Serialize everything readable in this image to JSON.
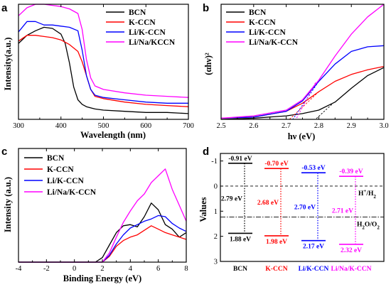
{
  "chart_data": [
    {
      "panel": "a",
      "type": "line",
      "xlabel": "Wavelength (nm)",
      "ylabel": "Intensity(a.u.)",
      "xlim": [
        300,
        700
      ],
      "ylim": [
        0,
        1
      ],
      "xticks": [
        "300",
        "400",
        "500",
        "600",
        "700"
      ],
      "legend_position": "top-right",
      "series": [
        {
          "name": "BCN",
          "color": "#000000",
          "x": [
            300,
            320,
            340,
            360,
            380,
            400,
            410,
            420,
            430,
            440,
            450,
            460,
            480,
            500,
            550,
            600,
            650,
            700
          ],
          "y": [
            0.66,
            0.73,
            0.77,
            0.8,
            0.79,
            0.74,
            0.66,
            0.49,
            0.28,
            0.17,
            0.13,
            0.11,
            0.09,
            0.08,
            0.07,
            0.06,
            0.06,
            0.05
          ]
        },
        {
          "name": "K-CCN",
          "color": "#ff0000",
          "x": [
            300,
            320,
            340,
            360,
            380,
            400,
            420,
            440,
            450,
            460,
            470,
            480,
            500,
            550,
            600,
            650,
            700
          ],
          "y": [
            0.68,
            0.73,
            0.73,
            0.72,
            0.71,
            0.69,
            0.65,
            0.59,
            0.5,
            0.38,
            0.26,
            0.2,
            0.18,
            0.15,
            0.13,
            0.12,
            0.11
          ]
        },
        {
          "name": "Li/K-CCN",
          "color": "#0000ff",
          "x": [
            300,
            320,
            340,
            360,
            380,
            400,
            420,
            440,
            450,
            460,
            470,
            480,
            500,
            550,
            600,
            650,
            700
          ],
          "y": [
            0.76,
            0.85,
            0.85,
            0.82,
            0.82,
            0.81,
            0.8,
            0.77,
            0.6,
            0.38,
            0.26,
            0.21,
            0.19,
            0.17,
            0.15,
            0.14,
            0.14
          ]
        },
        {
          "name": "Li/Na/KCCN",
          "color": "#ff00ff",
          "x": [
            300,
            320,
            340,
            360,
            380,
            400,
            420,
            440,
            450,
            460,
            470,
            480,
            500,
            550,
            600,
            650,
            700
          ],
          "y": [
            0.9,
            0.97,
            1.0,
            1.0,
            0.99,
            0.98,
            0.96,
            0.92,
            0.78,
            0.52,
            0.36,
            0.29,
            0.26,
            0.23,
            0.21,
            0.2,
            0.19
          ]
        }
      ]
    },
    {
      "panel": "b",
      "type": "line",
      "xlabel": "hν (eV)",
      "ylabel": "(αhν)²",
      "xlim": [
        2.5,
        3.0
      ],
      "ylim": [
        0,
        1
      ],
      "xticks": [
        "2.5",
        "2.6",
        "2.7",
        "2.8",
        "2.9",
        "3.0"
      ],
      "legend_position": "top-left",
      "band_gap_intercepts_eV": [
        2.71,
        2.72,
        2.73,
        2.79
      ],
      "series": [
        {
          "name": "BCN",
          "color": "#000000",
          "x": [
            2.5,
            2.6,
            2.7,
            2.75,
            2.8,
            2.85,
            2.9,
            2.95,
            3.0
          ],
          "y": [
            0.0,
            0.01,
            0.03,
            0.05,
            0.08,
            0.15,
            0.27,
            0.38,
            0.45
          ]
        },
        {
          "name": "K-CCN",
          "color": "#ff0000",
          "x": [
            2.5,
            2.6,
            2.7,
            2.75,
            2.8,
            2.85,
            2.9,
            2.95,
            3.0
          ],
          "y": [
            0.01,
            0.02,
            0.07,
            0.14,
            0.24,
            0.33,
            0.39,
            0.43,
            0.46
          ]
        },
        {
          "name": "Li/K-CCN",
          "color": "#0000ff",
          "x": [
            2.5,
            2.6,
            2.7,
            2.75,
            2.8,
            2.85,
            2.9,
            2.95,
            3.0
          ],
          "y": [
            0.01,
            0.02,
            0.07,
            0.16,
            0.33,
            0.48,
            0.59,
            0.63,
            0.64
          ]
        },
        {
          "name": "Li/Na/K-CCN",
          "color": "#ff00ff",
          "x": [
            2.5,
            2.6,
            2.7,
            2.75,
            2.8,
            2.85,
            2.9,
            2.95,
            3.0
          ],
          "y": [
            0.01,
            0.03,
            0.08,
            0.17,
            0.34,
            0.55,
            0.74,
            0.89,
            1.0
          ]
        }
      ]
    },
    {
      "panel": "c",
      "type": "line",
      "xlabel": "Binding Energy (eV)",
      "ylabel": "Intensity (a.u.)",
      "xlim": [
        -4,
        8
      ],
      "ylim": [
        0,
        1
      ],
      "xticks": [
        "-4",
        "-2",
        "0",
        "2",
        "4",
        "6",
        "8"
      ],
      "legend_position": "top-left",
      "series": [
        {
          "name": "BCN",
          "color": "#000000",
          "x": [
            -4,
            0,
            1,
            1.5,
            2.0,
            2.5,
            3.0,
            3.5,
            4.0,
            4.5,
            5.0,
            5.5,
            6.0,
            6.5,
            7.0,
            7.5,
            8.0
          ],
          "y": [
            0,
            0,
            0,
            0,
            0.04,
            0.15,
            0.26,
            0.32,
            0.33,
            0.31,
            0.4,
            0.52,
            0.46,
            0.33,
            0.29,
            0.22,
            0.26
          ]
        },
        {
          "name": "K-CCN",
          "color": "#ff0000",
          "x": [
            -4,
            0,
            1.5,
            2.0,
            2.5,
            3.0,
            3.5,
            4.0,
            4.5,
            5.0,
            5.5,
            6.0,
            6.5,
            7.0,
            7.5,
            8.0
          ],
          "y": [
            0,
            0,
            0,
            0,
            0.05,
            0.14,
            0.19,
            0.22,
            0.24,
            0.28,
            0.32,
            0.29,
            0.26,
            0.24,
            0.22,
            0.2
          ]
        },
        {
          "name": "Li/K-CCN",
          "color": "#0000ff",
          "x": [
            -4,
            0,
            1.5,
            2.0,
            2.5,
            3.0,
            3.5,
            4.0,
            4.5,
            5.0,
            5.5,
            6.0,
            6.5,
            7.0,
            7.5,
            8.0
          ],
          "y": [
            0,
            0,
            0,
            0,
            0.06,
            0.16,
            0.24,
            0.3,
            0.33,
            0.36,
            0.38,
            0.41,
            0.4,
            0.34,
            0.3,
            0.27
          ]
        },
        {
          "name": "Li/Na/K-CCN",
          "color": "#ff00ff",
          "x": [
            -4,
            0,
            1.5,
            2.0,
            2.5,
            3.0,
            3.5,
            4.0,
            4.5,
            5.0,
            5.5,
            6.0,
            6.5,
            7.0,
            7.5,
            8.0
          ],
          "y": [
            0,
            0,
            0,
            0,
            0.08,
            0.22,
            0.35,
            0.45,
            0.54,
            0.6,
            0.7,
            0.76,
            0.82,
            0.64,
            0.5,
            0.36
          ]
        }
      ]
    },
    {
      "panel": "d",
      "type": "bar",
      "ylabel": "Values",
      "ylim": [
        -1.3,
        3
      ],
      "yticks": [
        "-1",
        "0",
        "1",
        "2",
        "3"
      ],
      "reference_levels": [
        {
          "label_main": "H",
          "label_sup": "+",
          "label_rest": "/H",
          "label_sub": "2",
          "y": 0
        },
        {
          "label_main": "H",
          "label_sub": "2",
          "label_rest": "O/O",
          "label_sub2": "2",
          "y": 1.23
        }
      ],
      "categories": [
        "BCN",
        "K-CCN",
        "Li/K-CCN",
        "Li/Na/K-CCN"
      ],
      "colors": [
        "#000000",
        "#ff0000",
        "#0000ff",
        "#ff00ff"
      ],
      "cb_values": [
        -0.91,
        -0.7,
        -0.53,
        -0.39
      ],
      "vb_values": [
        1.88,
        1.98,
        2.17,
        2.32
      ],
      "band_gaps": [
        2.79,
        2.68,
        2.7,
        2.71
      ],
      "cb_labels": [
        "-0.91 eV",
        "-0.70 eV",
        "-0.53 eV",
        "-0.39 eV"
      ],
      "vb_labels": [
        "1.88 eV",
        "1.98 eV",
        "2.17 eV",
        "2.32 eV"
      ],
      "gap_labels": [
        "2.79 eV",
        "2.68 eV",
        "2.70 eV",
        "2.71 eV"
      ]
    }
  ]
}
